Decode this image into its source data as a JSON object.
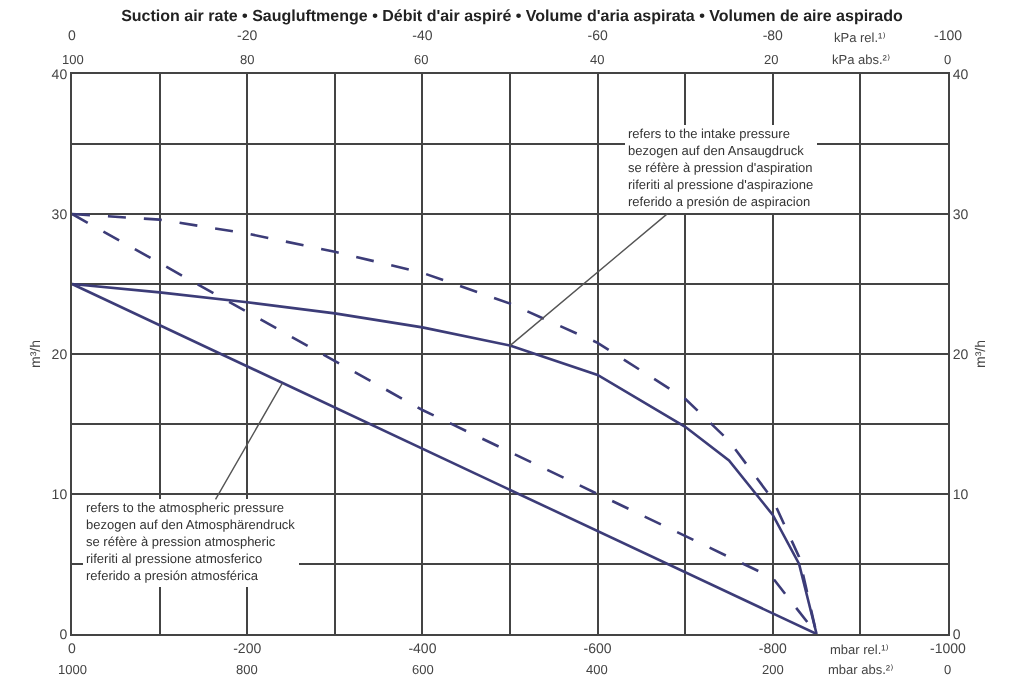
{
  "chart_data": {
    "type": "line",
    "title": "Suction air rate • Saugluftmenge • Débit d'air aspiré • Volume d'aria aspirata • Volumen de aire aspirado",
    "ylabel": "m³/h",
    "y2label": "m³/h",
    "x": [
      0,
      -100,
      -200,
      -300,
      -400,
      -500,
      -600,
      -700,
      -750,
      -800,
      -830,
      -850
    ],
    "series": [
      {
        "color": "#3c3c78",
        "line_style": "solid",
        "values": [
          25,
          24.4,
          23.7,
          22.9,
          21.9,
          20.6,
          18.5,
          14.8,
          12.4,
          8.5,
          5,
          0
        ]
      },
      {
        "color": "#3c3c78",
        "line_style": "dashed",
        "values": [
          30,
          29.6,
          28.6,
          27.3,
          25.8,
          23.6,
          20.8,
          16.8,
          13.8,
          9.6,
          5.5,
          0
        ]
      },
      {
        "color": "#3c3c78",
        "line_style": "solid",
        "x": [
          0,
          -850
        ],
        "values": [
          25,
          0
        ]
      },
      {
        "color": "#3c3c78",
        "line_style": "dashed",
        "x": [
          0,
          -400,
          -800,
          -850
        ],
        "values": [
          30,
          16,
          4,
          0
        ]
      }
    ],
    "xlim": [
      0,
      -1000
    ],
    "xticks": [
      0,
      {
        "value": -100,
        "label": null
      },
      -200,
      {
        "value": -300,
        "label": null
      },
      -400,
      {
        "value": -500,
        "label": null
      },
      -600,
      {
        "value": -700,
        "label": null
      },
      -800,
      {
        "value": -900,
        "label": null
      },
      -1000
    ],
    "x2lim": [
      0,
      -100
    ],
    "x2ticks": [
      0,
      -20,
      -40,
      -60,
      -80,
      -100
    ],
    "ylim": [
      0,
      40
    ],
    "yticks": [
      0,
      {
        "value": 5,
        "label": null
      },
      10,
      {
        "value": 15,
        "label": null
      },
      20,
      {
        "value": 25,
        "label": null
      },
      30,
      {
        "value": 35,
        "label": null
      },
      40
    ],
    "y2lim": [
      0,
      40
    ],
    "y2ticks": [
      0,
      10,
      20,
      30,
      40
    ],
    "grid": true,
    "marker": "none",
    "annotations": [
      "kPa rel.¹⁾",
      "100",
      "80",
      "60",
      "40",
      "20",
      "kPa abs.²⁾",
      "0",
      "mbar rel.¹⁾",
      "1000",
      "800",
      "600",
      "400",
      "200",
      "mbar abs.²⁾",
      "0",
      {
        "text": "refers to the intake pressure\nbezogen auf den Ansaugdruck\nse réfère à pression d'aspiration\nriferiti al pressione d'aspirazione\nreferido a presión de aspiracion",
        "x": -500,
        "y": 20.6
      },
      {
        "text": "refers to the atmospheric pressure\nbezogen auf den Atmosphärendruck\nse réfère à pression atmospheric\nriferiti al pressione atmosferico\nreferido a presión atmosférica",
        "x": -240,
        "y": 17.9
      }
    ]
  }
}
